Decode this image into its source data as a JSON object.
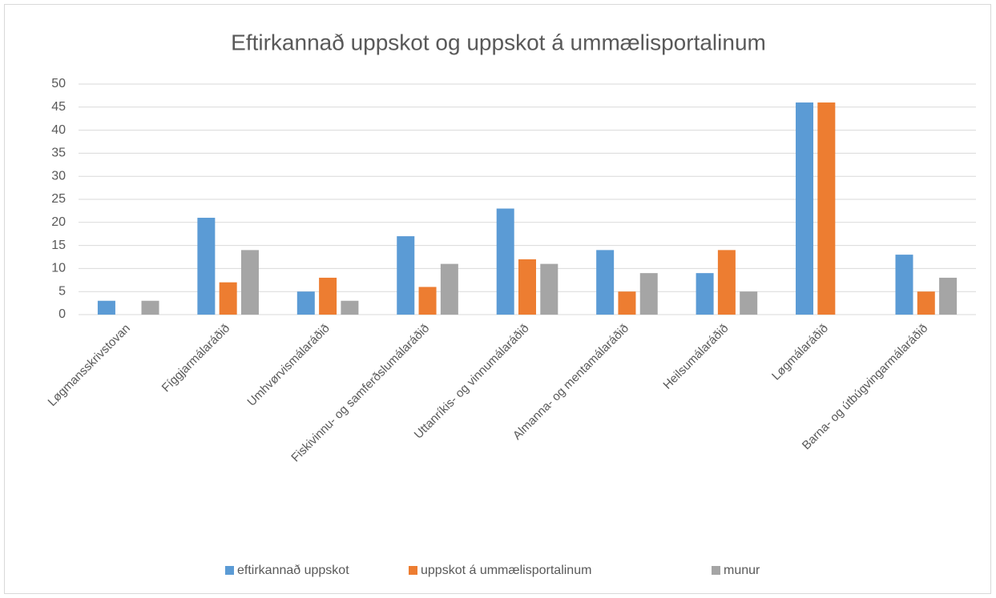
{
  "chart_data": {
    "type": "bar",
    "title": "Eftirkannað uppskot og uppskot á ummælisportalinum",
    "categories": [
      "Løgmansskrivstovan",
      "Fíggjarmálaráðið",
      "Umhvørvismálaráðið",
      "Fiskivinnu- og samferðslumálaráðið",
      "Uttanríkis- og vinnumálaráðið",
      "Almanna- og mentamálaráðið",
      "Heilsumálaráðið",
      "Løgmálaráðið",
      "Barna- og útbúgvingarmálaráðið"
    ],
    "series": [
      {
        "name": "eftirkannað uppskot",
        "color": "#5b9bd5",
        "values": [
          3,
          21,
          5,
          17,
          23,
          14,
          9,
          46,
          13
        ]
      },
      {
        "name": "uppskot á ummælisportalinum",
        "color": "#ed7d31",
        "values": [
          0,
          7,
          8,
          6,
          12,
          5,
          14,
          46,
          5
        ]
      },
      {
        "name": "munur",
        "color": "#a5a5a5",
        "values": [
          3,
          14,
          3,
          11,
          11,
          9,
          5,
          0,
          8
        ]
      }
    ],
    "ylim": [
      0,
      50
    ],
    "yticks": [
      0,
      5,
      10,
      15,
      20,
      25,
      30,
      35,
      40,
      45,
      50
    ],
    "grid": true,
    "legend": "bottom"
  }
}
